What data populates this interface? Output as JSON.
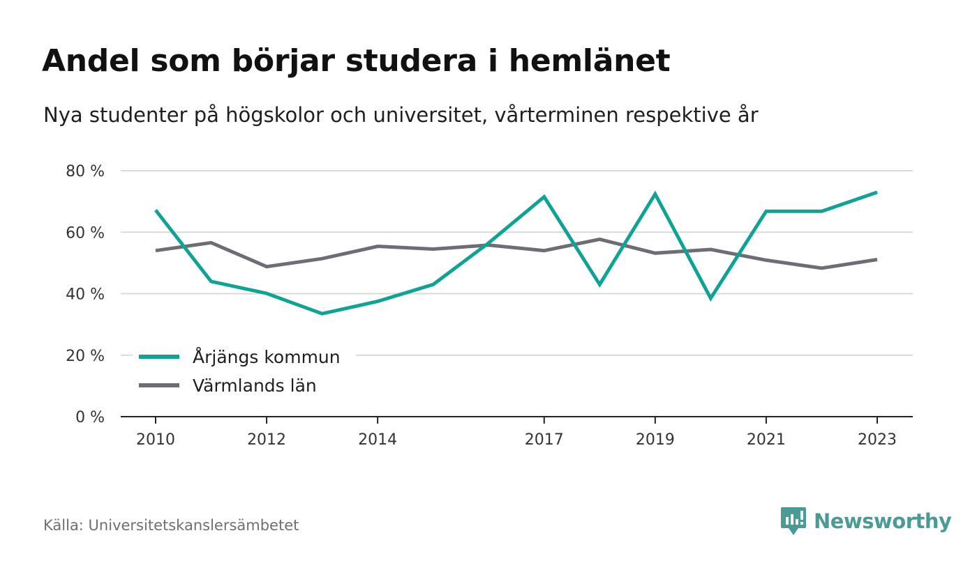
{
  "title": "Andel som börjar studera i hemlänet",
  "subtitle": "Nya studenter på högskolor och universitet, vårterminen respektive år",
  "source": "Källa: Universitetskanslersämbetet",
  "brand": {
    "name": "Newsworthy",
    "icon": "newsworthy-logo-icon",
    "color": "#4a9a95"
  },
  "chart_data": {
    "type": "line",
    "title": "Andel som börjar studera i hemlänet",
    "subtitle": "Nya studenter på högskolor och universitet, vårterminen respektive år",
    "x": [
      2010,
      2011,
      2012,
      2013,
      2014,
      2015,
      2016,
      2017,
      2018,
      2019,
      2020,
      2021,
      2022,
      2023
    ],
    "x_tick_labels": [
      "2010",
      "2012",
      "2014",
      "2017",
      "2019",
      "2021",
      "2023"
    ],
    "y_ticks": [
      0,
      20,
      40,
      60,
      80
    ],
    "y_tick_labels": [
      "0 %",
      "20 %",
      "40 %",
      "60 %",
      "80 %"
    ],
    "ylim": [
      0,
      80
    ],
    "grid": true,
    "legend_position": "bottom-left",
    "series": [
      {
        "name": "Årjängs kommun",
        "color": "#0fa396",
        "values": [
          67.2,
          44.0,
          40.1,
          33.5,
          37.5,
          43.0,
          56.5,
          71.5,
          43.0,
          72.4,
          38.5,
          66.8,
          66.8,
          73.0
        ]
      },
      {
        "name": "Värmlands län",
        "color": "#6e6d75",
        "values": [
          54.0,
          56.6,
          48.8,
          51.4,
          55.4,
          54.5,
          55.8,
          54.0,
          57.7,
          53.2,
          54.4,
          50.9,
          48.3,
          51.1
        ]
      }
    ]
  }
}
